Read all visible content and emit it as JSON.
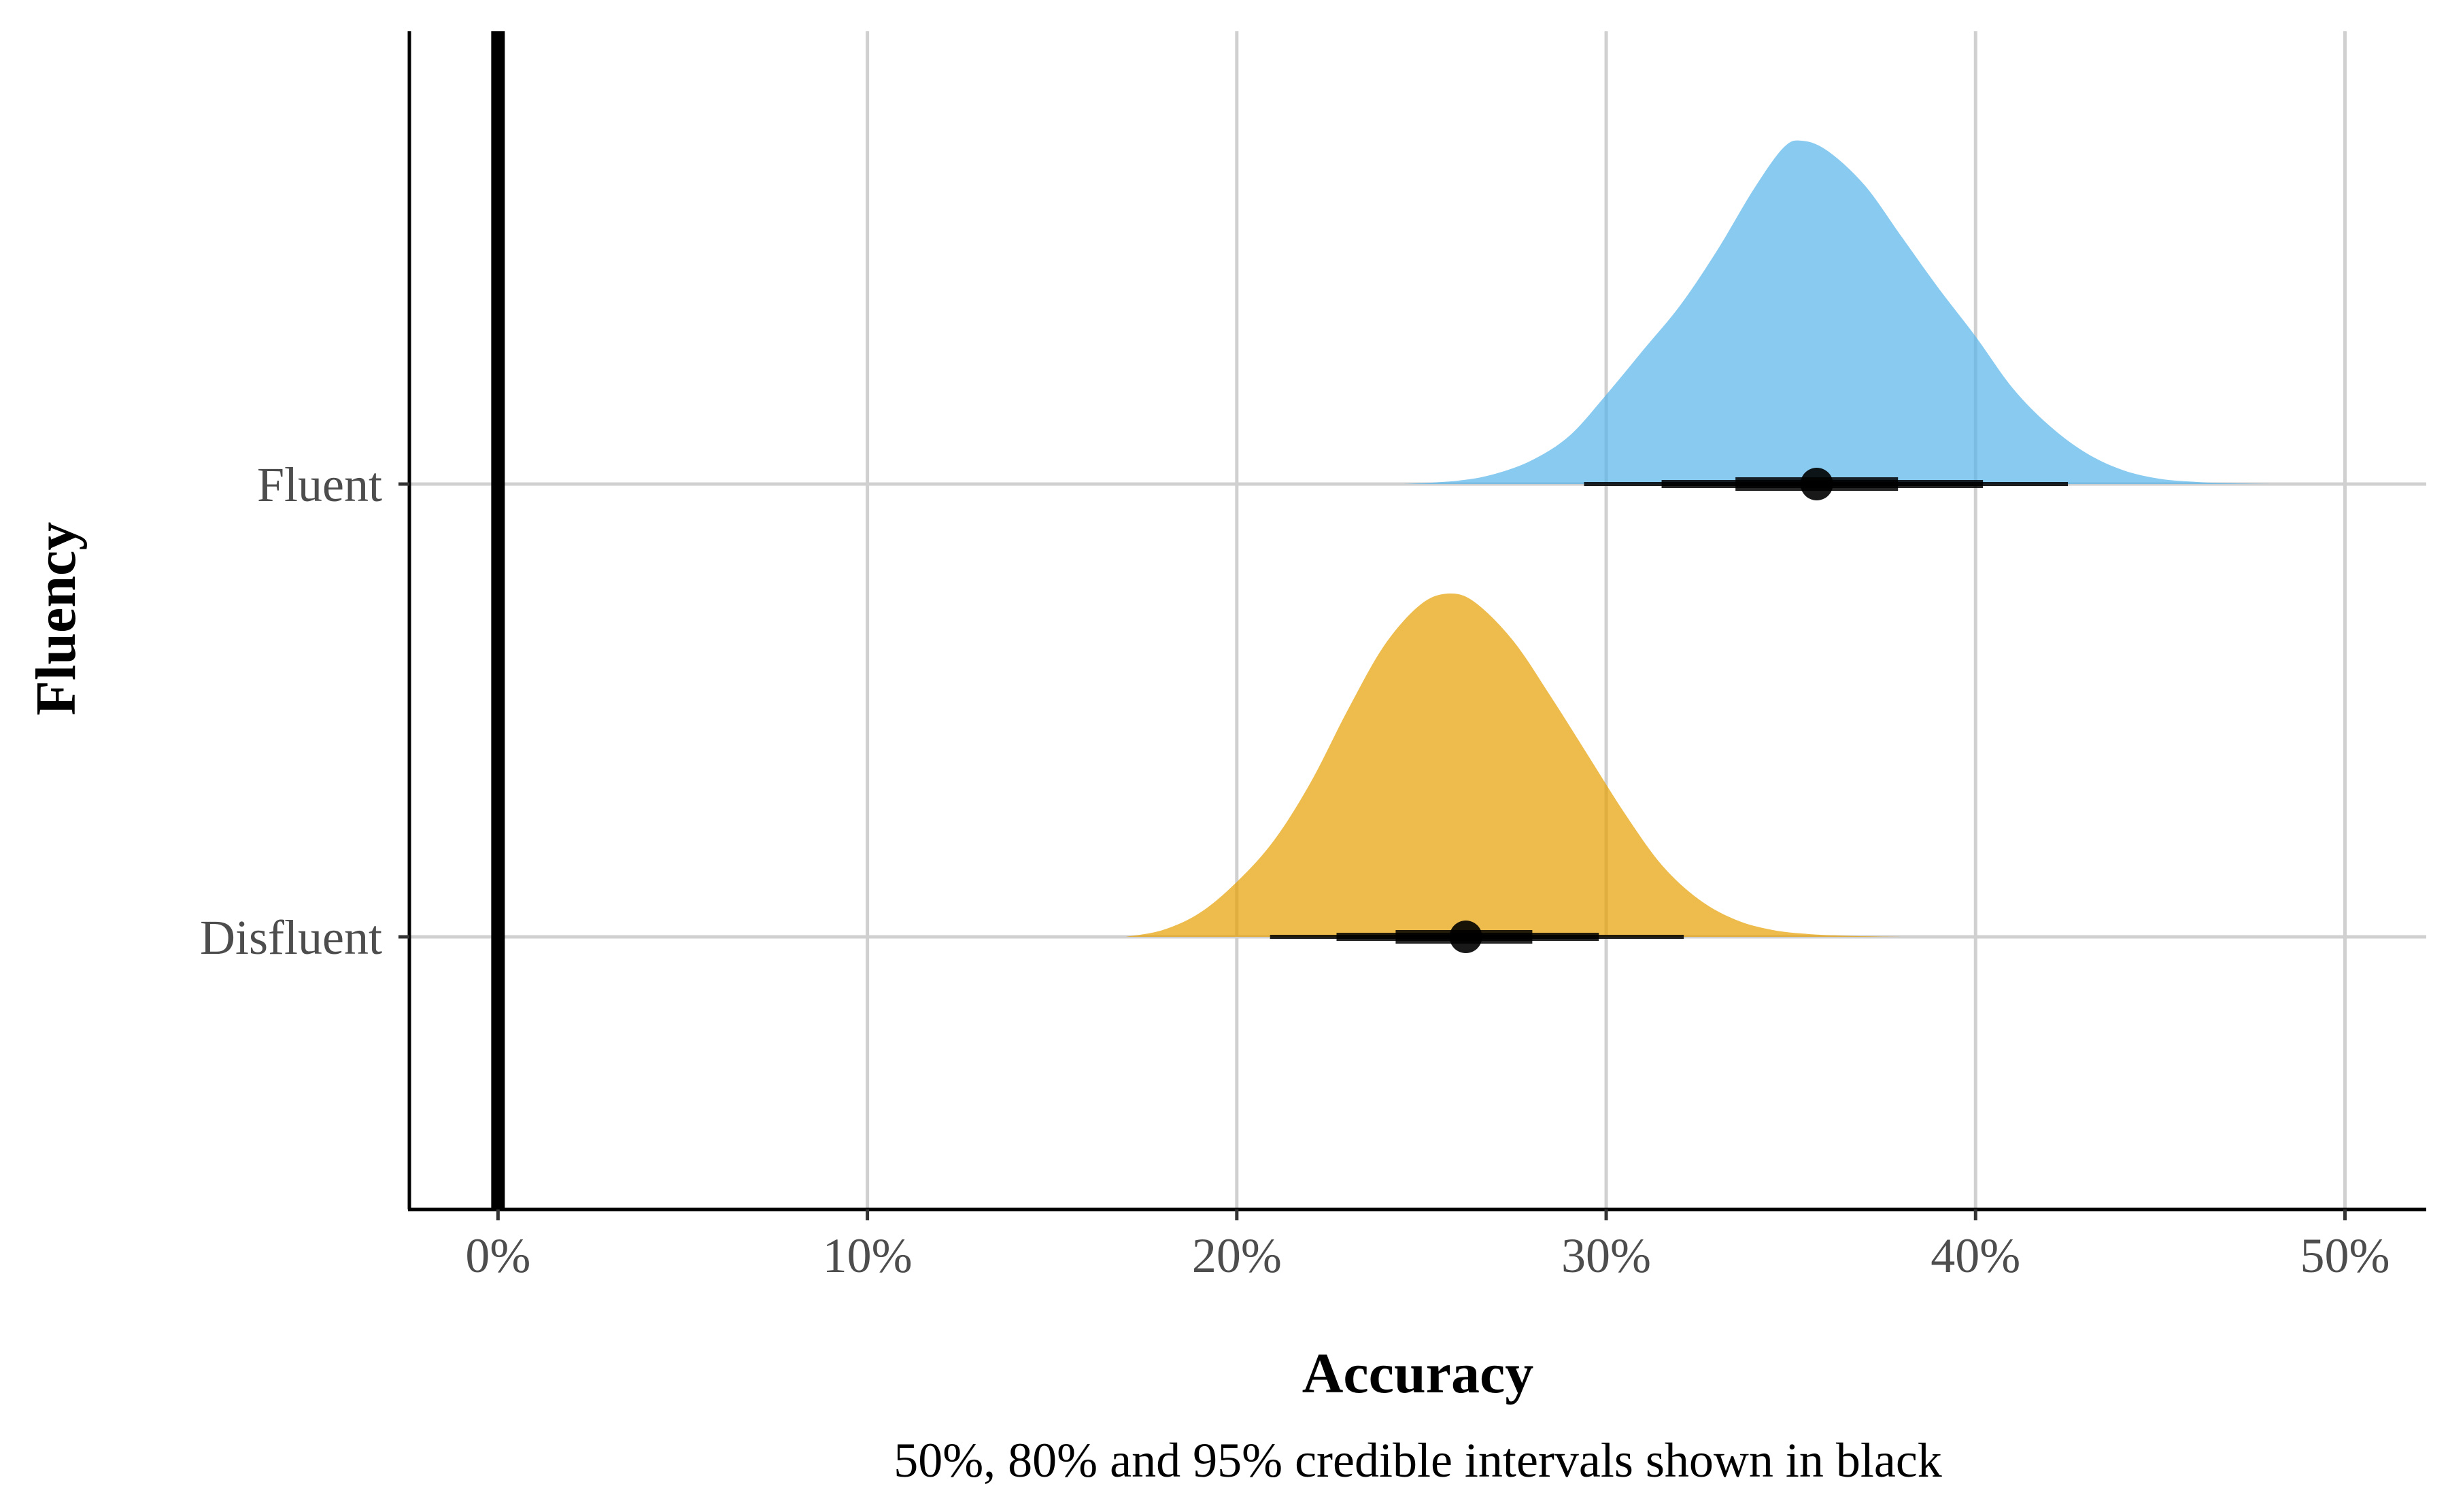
{
  "chart_data": {
    "type": "halfeye",
    "xlabel": "Accuracy",
    "ylabel": "Fluency",
    "caption": "50%, 80% and 95% credible intervals shown in black",
    "x_ticks": [
      {
        "value": 0,
        "label": "0%"
      },
      {
        "value": 10,
        "label": "10%"
      },
      {
        "value": 20,
        "label": "20%"
      },
      {
        "value": 30,
        "label": "30%"
      },
      {
        "value": 40,
        "label": "40%"
      },
      {
        "value": 50,
        "label": "50%"
      }
    ],
    "xlim": [
      -2.4,
      52.2
    ],
    "reference_line_x": 0,
    "grid": true,
    "categories": [
      "Fluent",
      "Disfluent"
    ],
    "series": [
      {
        "category": "Fluent",
        "color": "#56B4E9",
        "median": 35.7,
        "interval_50": [
          33.5,
          37.9
        ],
        "interval_80": [
          31.5,
          40.2
        ],
        "interval_95": [
          29.4,
          42.5
        ],
        "density": [
          [
            24.5,
            0
          ],
          [
            26,
            0.01
          ],
          [
            27,
            0.03
          ],
          [
            28,
            0.07
          ],
          [
            29,
            0.14
          ],
          [
            30,
            0.26
          ],
          [
            31,
            0.39
          ],
          [
            32,
            0.52
          ],
          [
            33,
            0.68
          ],
          [
            34,
            0.86
          ],
          [
            34.8,
            0.98
          ],
          [
            35.3,
            1.0
          ],
          [
            36,
            0.97
          ],
          [
            37,
            0.87
          ],
          [
            38,
            0.72
          ],
          [
            39,
            0.57
          ],
          [
            40,
            0.43
          ],
          [
            41,
            0.28
          ],
          [
            42,
            0.17
          ],
          [
            43,
            0.09
          ],
          [
            44,
            0.04
          ],
          [
            45,
            0.015
          ],
          [
            46,
            0.006
          ],
          [
            47,
            0.002
          ],
          [
            48,
            0
          ]
        ]
      },
      {
        "category": "Disfluent",
        "color": "#E69F00",
        "median": 26.2,
        "interval_50": [
          24.3,
          28.0
        ],
        "interval_80": [
          22.7,
          29.8
        ],
        "interval_95": [
          20.9,
          32.1
        ],
        "density": [
          [
            17,
            0
          ],
          [
            18,
            0.02
          ],
          [
            19,
            0.07
          ],
          [
            20,
            0.16
          ],
          [
            21,
            0.28
          ],
          [
            22,
            0.45
          ],
          [
            23,
            0.66
          ],
          [
            24,
            0.85
          ],
          [
            25,
            0.97
          ],
          [
            25.8,
            1.0
          ],
          [
            26.5,
            0.97
          ],
          [
            27.5,
            0.86
          ],
          [
            28.5,
            0.7
          ],
          [
            29.5,
            0.53
          ],
          [
            30.5,
            0.36
          ],
          [
            31.5,
            0.21
          ],
          [
            32.5,
            0.11
          ],
          [
            33.5,
            0.05
          ],
          [
            34.5,
            0.02
          ],
          [
            35.5,
            0.008
          ],
          [
            36.5,
            0.003
          ],
          [
            38,
            0
          ]
        ]
      }
    ]
  }
}
